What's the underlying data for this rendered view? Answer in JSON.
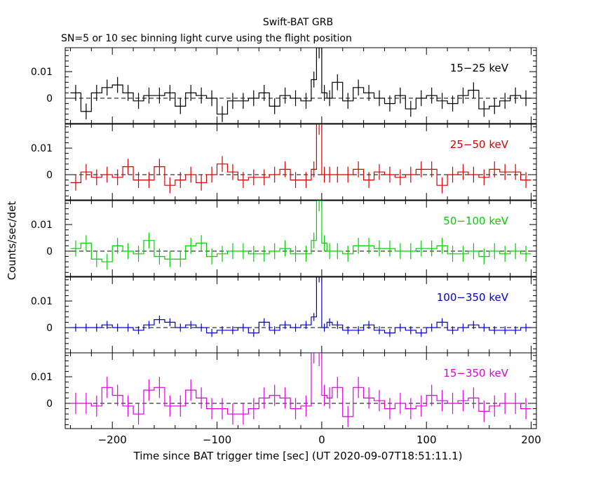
{
  "header": {
    "title": "Swift-BAT GRB",
    "subtitle": "SN=5 or 10 sec binning light curve using the flight position"
  },
  "axes": {
    "xlabel": "Time since BAT trigger time [sec] (UT 2020-09-07T18:51:11.1)",
    "ylabel": "Counts/sec/det"
  },
  "chart_data": {
    "type": "line",
    "step": true,
    "xlim": [
      -245,
      205
    ],
    "ylim": [
      -0.0095,
      0.019
    ],
    "x_ticks": [
      -200,
      -100,
      0,
      100,
      200
    ],
    "x_tick_labels": [
      "−200",
      "−100",
      "0",
      "100",
      "200"
    ],
    "y_ticks": [
      0,
      0.01
    ],
    "y_tick_labels": [
      "0",
      "0.01"
    ],
    "bin_edges": [
      -240,
      -230,
      -220,
      -210,
      -200,
      -190,
      -180,
      -170,
      -160,
      -150,
      -140,
      -130,
      -120,
      -110,
      -100,
      -90,
      -80,
      -70,
      -60,
      -50,
      -40,
      -30,
      -20,
      -10,
      -5,
      0,
      5,
      10,
      20,
      30,
      40,
      50,
      60,
      70,
      80,
      90,
      100,
      110,
      120,
      130,
      140,
      150,
      160,
      170,
      180,
      190,
      200
    ],
    "zero_line": "dashed",
    "series": [
      {
        "name": "15−25 keV",
        "color": "#000000",
        "values": [
          0.002,
          -0.005,
          0.002,
          0.004,
          0.005,
          0.002,
          -0.001,
          0.001,
          0.001,
          0.002,
          -0.003,
          0.002,
          0.001,
          0.0,
          -0.006,
          -0.001,
          -0.001,
          0.0,
          0.002,
          -0.003,
          0.001,
          0.0,
          -0.001,
          0.007,
          0.019,
          0.002,
          0.0,
          0.006,
          -0.001,
          0.004,
          0.002,
          0.0,
          -0.002,
          0.001,
          -0.004,
          0.0,
          0.001,
          -0.001,
          -0.002,
          0.001,
          0.003,
          -0.004,
          -0.003,
          -0.001,
          0.001,
          0.0
        ],
        "errors": [
          0.003,
          0.003,
          0.003,
          0.003,
          0.003,
          0.003,
          0.003,
          0.003,
          0.003,
          0.003,
          0.003,
          0.003,
          0.003,
          0.003,
          0.003,
          0.003,
          0.003,
          0.003,
          0.003,
          0.003,
          0.003,
          0.003,
          0.003,
          0.003,
          0.004,
          0.003,
          0.003,
          0.003,
          0.003,
          0.003,
          0.003,
          0.003,
          0.003,
          0.003,
          0.003,
          0.003,
          0.003,
          0.003,
          0.003,
          0.003,
          0.003,
          0.003,
          0.003,
          0.003,
          0.003,
          0.003
        ]
      },
      {
        "name": "25−50 keV",
        "color": "#d40000",
        "values": [
          -0.003,
          0.001,
          -0.001,
          0.0,
          -0.001,
          0.003,
          -0.002,
          -0.002,
          0.003,
          -0.004,
          -0.002,
          0.0,
          -0.003,
          0.0,
          0.004,
          0.001,
          -0.002,
          -0.001,
          -0.001,
          0.0,
          0.002,
          -0.002,
          -0.002,
          0.002,
          0.019,
          0.0,
          0.0,
          0.0,
          0.0,
          0.002,
          -0.002,
          0.001,
          0.0,
          -0.001,
          0.0,
          0.002,
          0.002,
          -0.004,
          0.0,
          0.001,
          0.0,
          -0.001,
          0.002,
          0.001,
          0.001,
          -0.002
        ],
        "errors": [
          0.003,
          0.003,
          0.003,
          0.003,
          0.003,
          0.003,
          0.003,
          0.003,
          0.003,
          0.003,
          0.003,
          0.003,
          0.003,
          0.003,
          0.003,
          0.003,
          0.003,
          0.003,
          0.003,
          0.003,
          0.003,
          0.003,
          0.003,
          0.003,
          0.004,
          0.003,
          0.003,
          0.003,
          0.003,
          0.003,
          0.003,
          0.003,
          0.003,
          0.003,
          0.003,
          0.003,
          0.003,
          0.003,
          0.003,
          0.003,
          0.003,
          0.003,
          0.003,
          0.003,
          0.003,
          0.003
        ]
      },
      {
        "name": "50−100 keV",
        "color": "#00d000",
        "values": [
          0.001,
          0.003,
          -0.003,
          -0.004,
          0.002,
          0.0,
          -0.001,
          0.004,
          -0.002,
          -0.003,
          -0.003,
          0.002,
          0.003,
          -0.002,
          -0.001,
          0.0,
          0.0,
          -0.001,
          -0.001,
          0.0,
          0.001,
          -0.001,
          -0.001,
          0.004,
          0.019,
          0.003,
          0.0,
          0.0,
          -0.001,
          0.002,
          0.002,
          0.001,
          0.001,
          0.0,
          0.0,
          0.001,
          0.001,
          0.002,
          -0.001,
          -0.001,
          0.0,
          -0.002,
          0.0,
          -0.001,
          0.0,
          -0.001
        ],
        "errors": [
          0.003,
          0.003,
          0.003,
          0.003,
          0.003,
          0.003,
          0.003,
          0.003,
          0.003,
          0.003,
          0.003,
          0.003,
          0.003,
          0.003,
          0.003,
          0.003,
          0.003,
          0.003,
          0.003,
          0.003,
          0.003,
          0.003,
          0.003,
          0.003,
          0.004,
          0.003,
          0.003,
          0.003,
          0.003,
          0.003,
          0.003,
          0.003,
          0.003,
          0.003,
          0.003,
          0.003,
          0.003,
          0.003,
          0.003,
          0.003,
          0.003,
          0.003,
          0.003,
          0.003,
          0.003,
          0.003
        ]
      },
      {
        "name": "100−350 keV",
        "color": "#0000c8",
        "values": [
          0.0,
          0.0,
          0.0,
          0.001,
          0.0,
          0.0,
          -0.001,
          0.001,
          0.003,
          0.002,
          0.0,
          0.001,
          0.0,
          -0.002,
          -0.001,
          -0.001,
          0.0,
          -0.002,
          0.002,
          -0.001,
          0.001,
          0.0,
          0.001,
          0.004,
          0.019,
          0.0,
          0.002,
          0.001,
          -0.001,
          -0.001,
          0.001,
          -0.001,
          -0.002,
          0.0,
          -0.001,
          -0.002,
          0.0,
          0.002,
          -0.001,
          0.0,
          0.001,
          0.0,
          -0.001,
          -0.001,
          -0.001,
          0.0
        ],
        "errors": [
          0.0015,
          0.0015,
          0.0015,
          0.0015,
          0.0015,
          0.0015,
          0.0015,
          0.0015,
          0.0015,
          0.0015,
          0.0015,
          0.0015,
          0.0015,
          0.0015,
          0.0015,
          0.0015,
          0.0015,
          0.0015,
          0.0015,
          0.0015,
          0.0015,
          0.0015,
          0.0015,
          0.0015,
          0.002,
          0.0015,
          0.0015,
          0.0015,
          0.0015,
          0.0015,
          0.0015,
          0.0015,
          0.0015,
          0.0015,
          0.0015,
          0.0015,
          0.0015,
          0.0015,
          0.0015,
          0.0015,
          0.0015,
          0.0015,
          0.0015,
          0.0015,
          0.0015,
          0.0015
        ]
      },
      {
        "name": "15−350 keV",
        "color": "#e000e0",
        "values": [
          0.0,
          0.0,
          -0.001,
          0.006,
          0.003,
          -0.001,
          -0.004,
          0.005,
          0.006,
          -0.001,
          -0.001,
          0.005,
          0.002,
          -0.002,
          -0.002,
          -0.004,
          -0.004,
          -0.002,
          0.002,
          0.003,
          0.002,
          -0.002,
          -0.001,
          0.019,
          0.019,
          0.003,
          0.002,
          0.006,
          -0.005,
          0.006,
          0.002,
          0.001,
          -0.002,
          0.0,
          -0.002,
          -0.001,
          0.003,
          0.001,
          0.0,
          0.001,
          0.002,
          -0.003,
          -0.001,
          0.0,
          0.0,
          -0.002
        ],
        "errors": [
          0.004,
          0.004,
          0.004,
          0.004,
          0.004,
          0.004,
          0.004,
          0.004,
          0.004,
          0.004,
          0.004,
          0.004,
          0.004,
          0.004,
          0.004,
          0.004,
          0.004,
          0.004,
          0.004,
          0.004,
          0.004,
          0.004,
          0.004,
          0.004,
          0.005,
          0.004,
          0.004,
          0.004,
          0.004,
          0.004,
          0.004,
          0.004,
          0.004,
          0.004,
          0.004,
          0.004,
          0.004,
          0.004,
          0.004,
          0.004,
          0.004,
          0.004,
          0.004,
          0.004,
          0.004,
          0.004
        ]
      }
    ]
  }
}
